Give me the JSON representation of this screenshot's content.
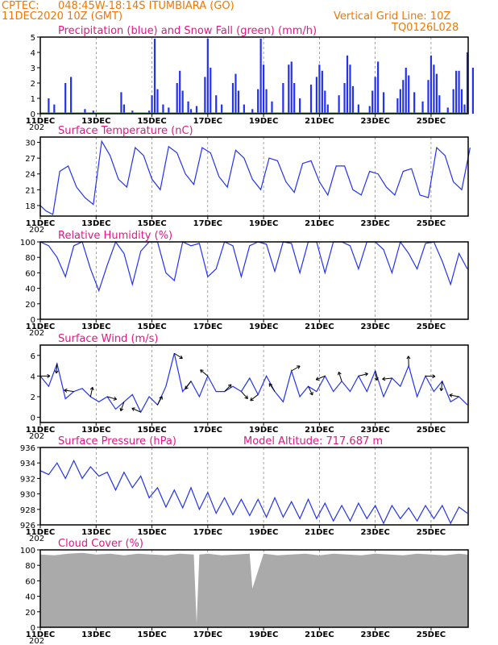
{
  "header": {
    "source": "CPTEC:",
    "location": "048:45W-18:14S  ITUMBIARA (GO)",
    "run": "11DEC2020 10Z (GMT)",
    "grid_note": "Vertical Grid Line: 10Z",
    "code": "TQ0126L028"
  },
  "x_axis": {
    "labels": [
      "11DEC",
      "13DEC",
      "15DEC",
      "17DEC",
      "19DEC",
      "21DEC",
      "23DEC",
      "25DEC"
    ],
    "year_fragment": "202"
  },
  "colors": {
    "header": "#f07800",
    "title": "#e0187f",
    "line": "#2233ee",
    "precip": "#2233ee",
    "snow": "#22aa22",
    "cloud": "#aaaaaa",
    "arrow": "#000000"
  },
  "chart_data": [
    {
      "type": "bar",
      "title": "Precipitation (blue) and Snow Fall (green) (mm/h)",
      "ylim": [
        0,
        5
      ],
      "yticks": [
        0,
        1,
        2,
        3,
        4,
        5
      ],
      "series": [
        {
          "name": "Precipitation",
          "x_days": [
            0.3,
            0.5,
            0.9,
            1.1,
            1.6,
            1.9,
            2.9,
            3.0,
            3.3,
            3.9,
            4.0,
            4.1,
            4.2,
            4.4,
            4.6,
            4.9,
            5.0,
            5.1,
            5.3,
            5.4,
            5.6,
            5.9,
            6.0,
            6.1,
            6.3,
            6.5,
            6.9,
            7.0,
            7.1,
            7.3,
            7.6,
            7.8,
            7.9,
            8.0,
            8.1,
            8.3,
            8.7,
            8.9,
            9.0,
            9.1,
            9.3,
            9.7,
            9.9,
            10.0,
            10.1,
            10.2,
            10.3,
            10.7,
            10.9,
            11.0,
            11.1,
            11.2,
            11.4,
            11.8,
            11.9,
            12.0,
            12.1,
            12.3,
            12.8,
            12.9,
            13.0,
            13.1,
            13.2,
            13.4,
            13.7,
            13.9,
            14.0,
            14.1,
            14.2,
            14.3,
            14.6,
            14.8,
            14.9,
            15.0,
            15.1,
            15.2,
            15.3,
            15.5
          ],
          "values": [
            1.0,
            0.6,
            2.0,
            2.4,
            0.3,
            0.2,
            1.4,
            0.6,
            0.2,
            0.2,
            1.2,
            4.9,
            1.6,
            0.6,
            0.4,
            2.0,
            2.8,
            1.5,
            0.8,
            0.3,
            0.5,
            2.4,
            4.9,
            3.0,
            1.2,
            0.6,
            2.0,
            2.6,
            1.5,
            0.6,
            0.3,
            1.6,
            4.9,
            3.2,
            1.6,
            0.8,
            2.0,
            3.2,
            3.4,
            2.0,
            1.0,
            1.9,
            2.4,
            3.2,
            2.8,
            1.5,
            0.6,
            1.2,
            2.0,
            3.8,
            3.2,
            1.8,
            0.6,
            0.5,
            1.5,
            2.4,
            3.4,
            1.4,
            1.0,
            1.6,
            2.2,
            3.0,
            2.5,
            1.4,
            0.8,
            2.2,
            3.8,
            3.2,
            2.6,
            1.2,
            0.4,
            1.6,
            2.8,
            2.8,
            1.6,
            0.6,
            4.0,
            3.0
          ]
        },
        {
          "name": "Snow Fall",
          "x_days": [],
          "values": []
        }
      ]
    },
    {
      "type": "line",
      "title": "Surface Temperature (nC)",
      "ylim": [
        16,
        31
      ],
      "yticks": [
        18,
        21,
        24,
        27,
        30
      ],
      "x_days": [
        0,
        0.2,
        0.45,
        0.7,
        1.0,
        1.3,
        1.6,
        1.9,
        2.2,
        2.5,
        2.8,
        3.1,
        3.4,
        3.7,
        4.0,
        4.3,
        4.6,
        4.9,
        5.2,
        5.5,
        5.8,
        6.1,
        6.4,
        6.7,
        7.0,
        7.3,
        7.6,
        7.9,
        8.2,
        8.5,
        8.8,
        9.1,
        9.4,
        9.7,
        10.0,
        10.3,
        10.6,
        10.9,
        11.2,
        11.5,
        11.8,
        12.1,
        12.4,
        12.7,
        13.0,
        13.3,
        13.6,
        13.9,
        14.2,
        14.5,
        14.8,
        15.1,
        15.4
      ],
      "y": [
        18,
        17,
        16.3,
        24.5,
        25.5,
        21.5,
        19.5,
        18.2,
        30.2,
        27.5,
        23.0,
        21.5,
        29.0,
        27.5,
        23.0,
        21.0,
        29.2,
        28.0,
        24.0,
        22.0,
        29.0,
        28.0,
        23.5,
        21.5,
        28.5,
        27.0,
        23.0,
        21.0,
        27.0,
        26.5,
        22.5,
        20.5,
        26.0,
        26.5,
        22.5,
        20.0,
        25.5,
        25.5,
        21.0,
        20.0,
        24.5,
        24.0,
        21.5,
        20.0,
        24.5,
        25.0,
        20.0,
        19.5,
        29.0,
        27.5,
        22.5,
        21.0,
        29.0
      ]
    },
    {
      "type": "line",
      "title": "Relative Humidity (%)",
      "ylim": [
        0,
        100
      ],
      "yticks": [
        0,
        20,
        40,
        60,
        80,
        100
      ],
      "x_days": [
        0,
        0.3,
        0.6,
        0.9,
        1.2,
        1.5,
        1.8,
        2.1,
        2.4,
        2.7,
        3.0,
        3.3,
        3.6,
        3.9,
        4.2,
        4.5,
        4.8,
        5.1,
        5.4,
        5.7,
        6.0,
        6.3,
        6.6,
        6.9,
        7.2,
        7.5,
        7.8,
        8.1,
        8.4,
        8.7,
        9.0,
        9.3,
        9.6,
        9.9,
        10.2,
        10.5,
        10.8,
        11.1,
        11.4,
        11.7,
        12.0,
        12.3,
        12.6,
        12.9,
        13.2,
        13.5,
        13.8,
        14.1,
        14.4,
        14.7,
        15.0,
        15.3
      ],
      "y": [
        100,
        95,
        80,
        55,
        95,
        100,
        65,
        37,
        70,
        100,
        85,
        45,
        88,
        100,
        100,
        60,
        50,
        100,
        95,
        98,
        55,
        65,
        100,
        95,
        55,
        95,
        100,
        97,
        62,
        100,
        98,
        60,
        100,
        100,
        60,
        100,
        100,
        95,
        65,
        100,
        100,
        90,
        60,
        100,
        85,
        65,
        98,
        100,
        75,
        45,
        85,
        65
      ]
    },
    {
      "type": "line",
      "title": "Surface Wind (m/s)",
      "ylim": [
        -0.5,
        7
      ],
      "yticks": [
        0,
        2,
        4,
        6
      ],
      "x_days": [
        0,
        0.3,
        0.6,
        0.9,
        1.2,
        1.5,
        1.8,
        2.1,
        2.4,
        2.7,
        3.0,
        3.3,
        3.6,
        3.9,
        4.2,
        4.5,
        4.8,
        5.1,
        5.4,
        5.7,
        6.0,
        6.3,
        6.6,
        6.9,
        7.2,
        7.5,
        7.8,
        8.1,
        8.4,
        8.7,
        9.0,
        9.3,
        9.6,
        9.9,
        10.2,
        10.5,
        10.8,
        11.1,
        11.4,
        11.7,
        12.0,
        12.3,
        12.6,
        12.9,
        13.2,
        13.5,
        13.8,
        14.1,
        14.4,
        14.7,
        15.0,
        15.3
      ],
      "y": [
        4.0,
        3.0,
        5.2,
        1.8,
        2.5,
        2.8,
        2.0,
        1.5,
        2.0,
        0.8,
        1.5,
        2.2,
        0.5,
        2.0,
        1.2,
        3.0,
        6.2,
        2.5,
        3.5,
        2.0,
        4.0,
        2.5,
        2.5,
        3.0,
        2.5,
        3.8,
        2.2,
        4.0,
        2.5,
        1.5,
        4.5,
        2.0,
        3.0,
        2.5,
        4.0,
        2.5,
        3.5,
        2.5,
        4.0,
        2.5,
        4.5,
        2.0,
        3.8,
        3.0,
        5.0,
        2.0,
        4.0,
        2.5,
        3.5,
        1.5,
        2.0,
        1.2
      ]
    },
    {
      "type": "line",
      "title": "Surface Pressure (hPa)",
      "annotation": "Model Altitude: 717.687 m",
      "ylim": [
        926,
        936
      ],
      "yticks": [
        926,
        928,
        930,
        932,
        934,
        936
      ],
      "x_days": [
        0,
        0.3,
        0.6,
        0.9,
        1.2,
        1.5,
        1.8,
        2.1,
        2.4,
        2.7,
        3.0,
        3.3,
        3.6,
        3.9,
        4.2,
        4.5,
        4.8,
        5.1,
        5.4,
        5.7,
        6.0,
        6.3,
        6.6,
        6.9,
        7.2,
        7.5,
        7.8,
        8.1,
        8.4,
        8.7,
        9.0,
        9.3,
        9.6,
        9.9,
        10.2,
        10.5,
        10.8,
        11.1,
        11.4,
        11.7,
        12.0,
        12.3,
        12.6,
        12.9,
        13.2,
        13.5,
        13.8,
        14.1,
        14.4,
        14.7,
        15.0,
        15.3
      ],
      "y": [
        933,
        932.5,
        934,
        932,
        934.3,
        932,
        933.5,
        932.3,
        932.8,
        930.5,
        932.8,
        930.8,
        932.3,
        929.5,
        930.8,
        928.3,
        930.5,
        928.2,
        930.8,
        928,
        930.2,
        927.5,
        929.5,
        927.3,
        929.3,
        927.2,
        929.3,
        927,
        929.5,
        927,
        929,
        926.8,
        929.3,
        926.8,
        928.8,
        926.5,
        928.5,
        926.5,
        928.8,
        926.8,
        928.5,
        926.2,
        928.5,
        926.8,
        928.2,
        926.5,
        928.5,
        926.8,
        928.5,
        926.2,
        928.3,
        927.5
      ]
    },
    {
      "type": "area",
      "title": "Cloud Cover (%)",
      "ylim": [
        0,
        100
      ],
      "yticks": [
        0,
        20,
        40,
        60,
        80,
        100
      ],
      "x_days": [
        0,
        0.5,
        1.0,
        1.5,
        2.0,
        2.5,
        3.0,
        3.5,
        4.0,
        4.5,
        5.0,
        5.5,
        5.6,
        5.7,
        6.0,
        6.5,
        7.0,
        7.5,
        7.6,
        8.0,
        8.5,
        9.0,
        9.5,
        10.0,
        10.5,
        11.0,
        11.5,
        12.0,
        12.5,
        13.0,
        13.5,
        14.0,
        14.5,
        15.0,
        15.3
      ],
      "y": [
        94,
        93,
        95,
        96,
        94,
        95,
        93,
        95,
        94,
        93,
        95,
        94,
        5,
        94,
        95,
        93,
        94,
        95,
        50,
        95,
        93,
        94,
        95,
        93,
        95,
        94,
        93,
        95,
        94,
        93,
        95,
        94,
        93,
        95,
        94
      ]
    }
  ]
}
